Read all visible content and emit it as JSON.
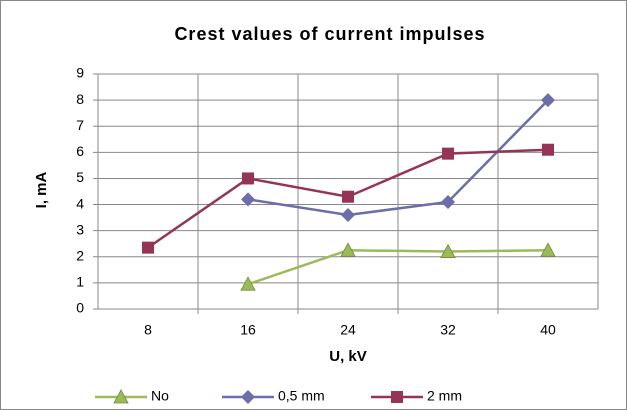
{
  "chart_data": {
    "type": "line",
    "title": "Crest values of current impulses",
    "x_label": "U, kV",
    "y_label": "I, mA",
    "categories": [
      "8",
      "16",
      "24",
      "32",
      "40"
    ],
    "series": [
      {
        "name": "No",
        "color": "#9bbb59",
        "marker": "triangle",
        "values": [
          null,
          0.95,
          2.25,
          2.2,
          2.25
        ]
      },
      {
        "name": "0,5 mm",
        "color": "#6b6ea8",
        "marker": "diamond",
        "values": [
          null,
          4.2,
          3.6,
          4.1,
          8.0
        ]
      },
      {
        "name": "2 mm",
        "color": "#953553",
        "marker": "square",
        "values": [
          2.35,
          5.0,
          4.3,
          5.95,
          6.1
        ]
      }
    ],
    "ylim": [
      0,
      9
    ],
    "yticks": [
      0,
      1,
      2,
      3,
      4,
      5,
      6,
      7,
      8,
      9
    ],
    "grid": true,
    "legend": "bottom"
  }
}
